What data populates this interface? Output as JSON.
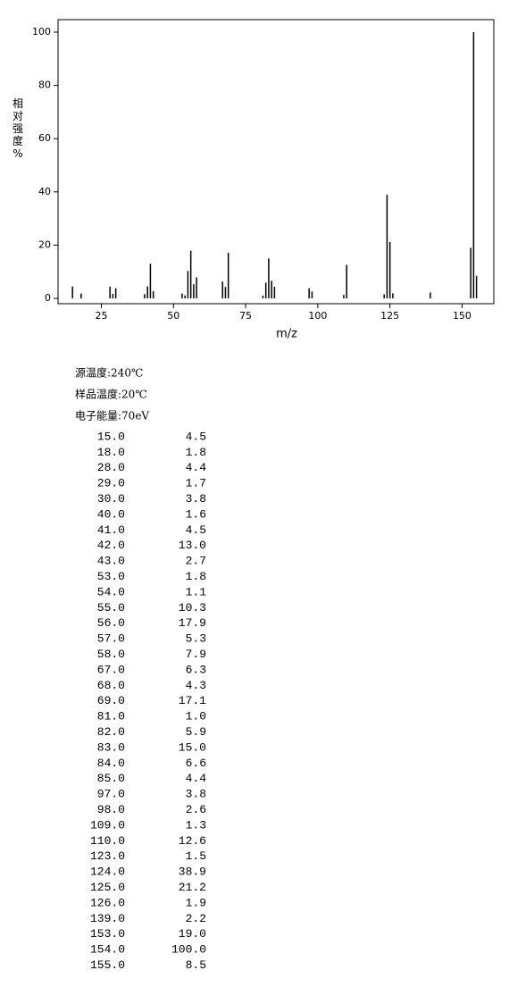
{
  "chart_data": {
    "type": "stem",
    "x_label": "m/z",
    "y_label": "相对强度%",
    "x": [
      15,
      18,
      28,
      29,
      30,
      40,
      41,
      42,
      43,
      53,
      54,
      55,
      56,
      57,
      58,
      67,
      68,
      69,
      81,
      82,
      83,
      84,
      85,
      97,
      98,
      109,
      110,
      123,
      124,
      125,
      126,
      139,
      153,
      154,
      155
    ],
    "values": [
      4.5,
      1.8,
      4.4,
      1.7,
      3.8,
      1.6,
      4.5,
      13.0,
      2.7,
      1.8,
      1.1,
      10.3,
      17.9,
      5.3,
      7.9,
      6.3,
      4.3,
      17.1,
      1.0,
      5.9,
      15.0,
      6.6,
      4.4,
      3.8,
      2.6,
      1.3,
      12.6,
      1.5,
      38.9,
      21.2,
      1.9,
      2.2,
      19.0,
      100.0,
      8.5
    ],
    "color": "#000000",
    "xlim": [
      10,
      161
    ],
    "xticks": [
      25,
      50,
      75,
      100,
      125,
      150
    ],
    "ylim": [
      -2,
      104.7
    ],
    "yticks": [
      0,
      20,
      40,
      60,
      80,
      100
    ]
  },
  "conditions": [
    "源温度:240℃",
    "样品温度:20℃",
    "电子能量:70eV"
  ],
  "table": {
    "rows": [
      [
        "15.0",
        "4.5"
      ],
      [
        "18.0",
        "1.8"
      ],
      [
        "28.0",
        "4.4"
      ],
      [
        "29.0",
        "1.7"
      ],
      [
        "30.0",
        "3.8"
      ],
      [
        "40.0",
        "1.6"
      ],
      [
        "41.0",
        "4.5"
      ],
      [
        "42.0",
        "13.0"
      ],
      [
        "43.0",
        "2.7"
      ],
      [
        "53.0",
        "1.8"
      ],
      [
        "54.0",
        "1.1"
      ],
      [
        "55.0",
        "10.3"
      ],
      [
        "56.0",
        "17.9"
      ],
      [
        "57.0",
        "5.3"
      ],
      [
        "58.0",
        "7.9"
      ],
      [
        "67.0",
        "6.3"
      ],
      [
        "68.0",
        "4.3"
      ],
      [
        "69.0",
        "17.1"
      ],
      [
        "81.0",
        "1.0"
      ],
      [
        "82.0",
        "5.9"
      ],
      [
        "83.0",
        "15.0"
      ],
      [
        "84.0",
        "6.6"
      ],
      [
        "85.0",
        "4.4"
      ],
      [
        "97.0",
        "3.8"
      ],
      [
        "98.0",
        "2.6"
      ],
      [
        "109.0",
        "1.3"
      ],
      [
        "110.0",
        "12.6"
      ],
      [
        "123.0",
        "1.5"
      ],
      [
        "124.0",
        "38.9"
      ],
      [
        "125.0",
        "21.2"
      ],
      [
        "126.0",
        "1.9"
      ],
      [
        "139.0",
        "2.2"
      ],
      [
        "153.0",
        "19.0"
      ],
      [
        "154.0",
        "100.0"
      ],
      [
        "155.0",
        "8.5"
      ]
    ]
  }
}
